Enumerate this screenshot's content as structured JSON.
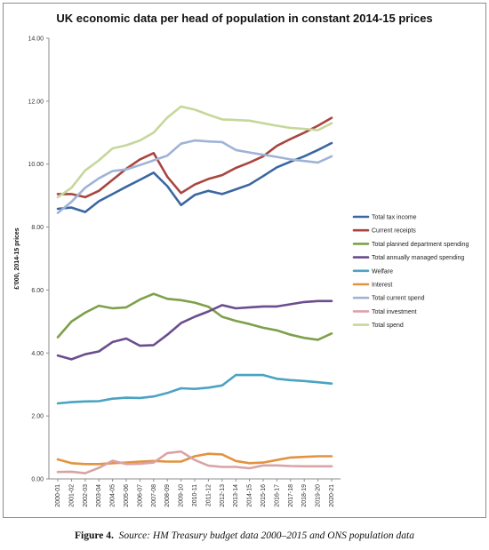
{
  "chart_data": {
    "type": "line",
    "title": "UK economic data per head of population in constant 2014-15 prices",
    "xlabel": "",
    "ylabel": "£'000, 2014-15 prices",
    "ylim": [
      0,
      14
    ],
    "yticks": [
      "0.00",
      "2.00",
      "4.00",
      "6.00",
      "8.00",
      "10.00",
      "12.00",
      "14.00"
    ],
    "grid": false,
    "legend_position": "right",
    "categories": [
      "2000-01",
      "2001-02",
      "2002-03",
      "2003-04",
      "2004-05",
      "2005-06",
      "2006-07",
      "2007-08",
      "2008-09",
      "2009-10",
      "2010-11",
      "2011-12",
      "2012-13",
      "2013-14",
      "2014-15",
      "2015-16",
      "2016-17",
      "2017-18",
      "2018-19",
      "2019-20",
      "2020-21"
    ],
    "series": [
      {
        "name": "Total tax income",
        "color": "#3a67a0",
        "values": [
          8.58,
          8.62,
          8.48,
          8.82,
          9.05,
          9.28,
          9.5,
          9.73,
          9.3,
          8.7,
          9.02,
          9.15,
          9.05,
          9.2,
          9.35,
          9.62,
          9.9,
          10.08,
          10.25,
          10.45,
          10.67
        ]
      },
      {
        "name": "Current receipts",
        "color": "#a9453f",
        "values": [
          9.05,
          9.05,
          8.95,
          9.15,
          9.5,
          9.85,
          10.15,
          10.35,
          9.6,
          9.08,
          9.35,
          9.53,
          9.65,
          9.88,
          10.05,
          10.25,
          10.58,
          10.8,
          11.0,
          11.22,
          11.47
        ]
      },
      {
        "name": "Total planned department spending",
        "color": "#7ea04a",
        "values": [
          4.5,
          5.0,
          5.28,
          5.5,
          5.42,
          5.45,
          5.7,
          5.88,
          5.72,
          5.68,
          5.6,
          5.47,
          5.15,
          5.02,
          4.92,
          4.8,
          4.72,
          4.58,
          4.48,
          4.42,
          4.62
        ]
      },
      {
        "name": "Total annually managed spending",
        "color": "#6a4d8e",
        "values": [
          3.92,
          3.8,
          3.96,
          4.05,
          4.35,
          4.46,
          4.23,
          4.25,
          4.58,
          4.95,
          5.15,
          5.32,
          5.52,
          5.42,
          5.45,
          5.48,
          5.48,
          5.55,
          5.62,
          5.65,
          5.65
        ]
      },
      {
        "name": "Welfare",
        "color": "#4aa3c2",
        "values": [
          2.4,
          2.44,
          2.46,
          2.47,
          2.55,
          2.58,
          2.57,
          2.62,
          2.73,
          2.88,
          2.86,
          2.9,
          2.97,
          3.3,
          3.3,
          3.3,
          3.18,
          3.14,
          3.11,
          3.07,
          3.03
        ]
      },
      {
        "name": "Interest",
        "color": "#e2933e",
        "values": [
          0.62,
          0.5,
          0.47,
          0.47,
          0.5,
          0.52,
          0.55,
          0.57,
          0.55,
          0.55,
          0.72,
          0.8,
          0.78,
          0.57,
          0.5,
          0.52,
          0.6,
          0.68,
          0.7,
          0.72,
          0.72
        ]
      },
      {
        "name": "Total current spend",
        "color": "#9fb3d6",
        "values": [
          8.45,
          8.8,
          9.25,
          9.55,
          9.78,
          9.83,
          9.97,
          10.12,
          10.27,
          10.65,
          10.75,
          10.72,
          10.7,
          10.45,
          10.37,
          10.3,
          10.23,
          10.15,
          10.1,
          10.05,
          10.25
        ]
      },
      {
        "name": "Total investment",
        "color": "#d9a3a6",
        "values": [
          0.22,
          0.23,
          0.18,
          0.35,
          0.58,
          0.47,
          0.48,
          0.52,
          0.82,
          0.87,
          0.6,
          0.42,
          0.38,
          0.38,
          0.34,
          0.43,
          0.43,
          0.41,
          0.4,
          0.4,
          0.4
        ]
      },
      {
        "name": "Total spend",
        "color": "#c6d79b",
        "values": [
          8.95,
          9.25,
          9.8,
          10.12,
          10.5,
          10.6,
          10.75,
          11.0,
          11.48,
          11.83,
          11.73,
          11.57,
          11.42,
          11.4,
          11.38,
          11.3,
          11.22,
          11.15,
          11.12,
          11.08,
          11.3
        ]
      }
    ]
  },
  "caption": {
    "figure": "Figure 4.",
    "source": "Source: HM Treasury budget data 2000–2015 and ONS population data"
  }
}
